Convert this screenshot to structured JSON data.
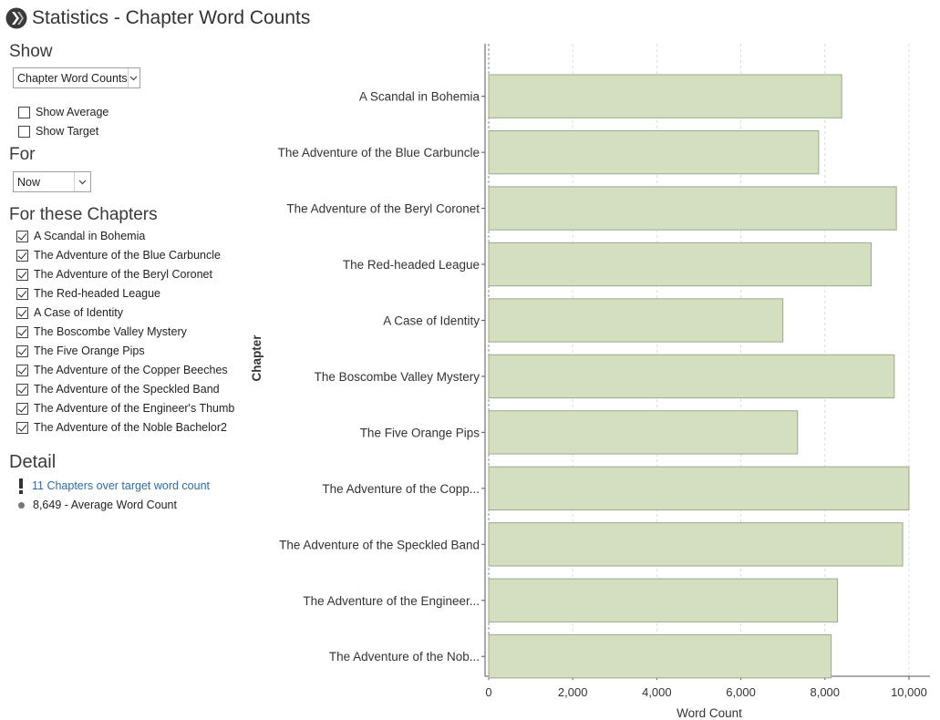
{
  "window": {
    "title": "Statistics - Chapter Word Counts",
    "app_icon": "scrivener-logo-icon"
  },
  "show": {
    "heading": "Show",
    "dropdown_value": "Chapter Word Counts",
    "options": [
      {
        "label": "Show Average",
        "checked": false
      },
      {
        "label": "Show Target",
        "checked": false
      }
    ]
  },
  "for": {
    "heading": "For",
    "dropdown_value": "Now"
  },
  "chapters_section": {
    "heading": "For these Chapters",
    "items": [
      {
        "label": "A Scandal in Bohemia",
        "checked": true
      },
      {
        "label": "The Adventure of the Blue Carbuncle",
        "checked": true
      },
      {
        "label": "The Adventure of the Beryl Coronet",
        "checked": true
      },
      {
        "label": "The Red-headed League",
        "checked": true
      },
      {
        "label": "A Case of Identity",
        "checked": true
      },
      {
        "label": "The Boscombe Valley Mystery",
        "checked": true
      },
      {
        "label": "The Five Orange Pips",
        "checked": true
      },
      {
        "label": "The Adventure of the Copper Beeches",
        "checked": true
      },
      {
        "label": "The Adventure of the Speckled Band",
        "checked": true
      },
      {
        "label": "The Adventure of the Engineer's Thumb",
        "checked": true
      },
      {
        "label": "The Adventure of the Noble Bachelor2",
        "checked": true
      }
    ]
  },
  "detail": {
    "heading": "Detail",
    "over_target": "11 Chapters over target word count",
    "average": "8,649 - Average Word Count"
  },
  "chart_data": {
    "type": "bar",
    "orientation": "horizontal",
    "categories": [
      "A Scandal in Bohemia",
      "The Adventure of the Blue Carbuncle",
      "The Adventure of the Beryl Coronet",
      "The Red-headed League",
      "A Case of Identity",
      "The Boscombe Valley Mystery",
      "The Five Orange Pips",
      "The Adventure of the Copp...",
      "The Adventure of the Speckled Band",
      "The Adventure of the Engineer...",
      "The Adventure of the Nob..."
    ],
    "values": [
      8400,
      7850,
      9700,
      9100,
      7000,
      9650,
      7350,
      10000,
      9850,
      8300,
      8150
    ],
    "xlabel": "Word Count",
    "ylabel": "Chapter",
    "xlim": [
      0,
      10500
    ],
    "xticks": [
      0,
      2000,
      4000,
      6000,
      8000,
      10000
    ],
    "xtick_labels": [
      "0",
      "2,000",
      "4,000",
      "6,000",
      "8,000",
      "10,000"
    ],
    "grid": "vertical dashed",
    "bar_color": "#d3dfbf",
    "bar_border_color": "#9aa88a"
  }
}
